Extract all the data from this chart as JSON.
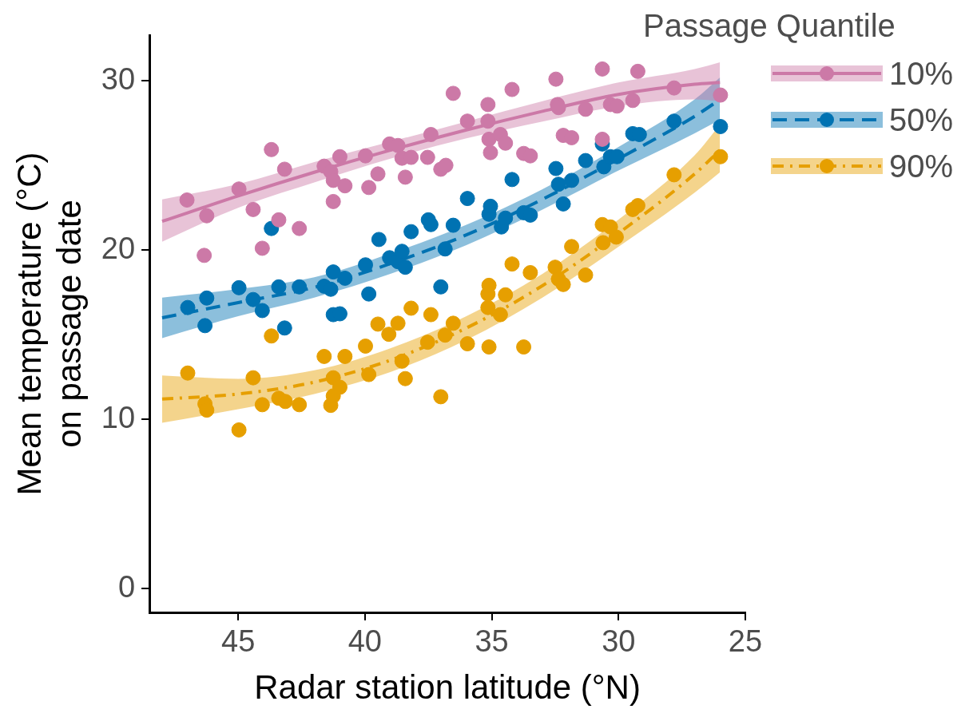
{
  "chart_data": {
    "type": "scatter",
    "xlabel": "Radar station latitude (°N)",
    "ylabel": "Mean temperature (°C)\non passage date",
    "legend_title": "Passage Quantile",
    "legend": "right",
    "grid": false,
    "xlim": [
      48.5,
      25
    ],
    "xticks": [
      45,
      40,
      35,
      30,
      25
    ],
    "ylim": [
      -1.4,
      32.7
    ],
    "yticks": [
      0,
      10,
      20,
      30
    ],
    "series": [
      {
        "name": "10%",
        "marker": "circle",
        "color": "#cc79a7",
        "x": [
          47.02,
          46.24,
          46.34,
          44.97,
          44.41,
          44.05,
          43.69,
          43.4,
          43.17,
          42.59,
          41.61,
          41.35,
          41.25,
          41.25,
          40.99,
          40.79,
          39.98,
          39.85,
          39.49,
          39.03,
          38.7,
          38.54,
          38.41,
          38.18,
          37.53,
          37.4,
          37.01,
          36.81,
          36.52,
          35.96,
          35.15,
          35.15,
          35.11,
          35.05,
          34.66,
          34.46,
          34.2,
          33.74,
          33.48,
          32.47,
          32.41,
          32.37,
          32.18,
          31.85,
          31.3,
          30.64,
          30.64,
          30.32,
          30.06,
          29.44,
          29.24,
          27.81,
          25.98
        ],
        "values": [
          22.96,
          22.03,
          19.69,
          23.61,
          22.4,
          20.11,
          25.94,
          21.79,
          24.78,
          21.28,
          24.96,
          24.64,
          24.12,
          22.87,
          25.52,
          23.8,
          25.57,
          23.7,
          24.5,
          26.27,
          26.18,
          25.43,
          24.31,
          25.48,
          25.48,
          26.83,
          24.78,
          25.01,
          29.26,
          27.62,
          28.6,
          27.62,
          26.55,
          25.76,
          26.83,
          26.32,
          29.49,
          25.71,
          25.57,
          30.1,
          28.6,
          28.42,
          26.78,
          26.64,
          28.32,
          30.7,
          26.55,
          28.6,
          28.51,
          28.84,
          30.56,
          29.58,
          29.16
        ]
      },
      {
        "name": "50%",
        "marker": "circle",
        "color": "#0072b2",
        "x": [
          46.99,
          46.24,
          46.31,
          44.97,
          44.41,
          44.05,
          43.69,
          43.4,
          43.17,
          42.59,
          41.61,
          41.35,
          41.25,
          41.25,
          40.99,
          40.79,
          39.98,
          39.85,
          39.45,
          39.03,
          38.7,
          38.54,
          38.41,
          38.18,
          37.5,
          37.4,
          37.01,
          36.84,
          36.52,
          35.96,
          35.11,
          35.05,
          34.62,
          34.46,
          34.2,
          33.74,
          33.48,
          32.47,
          32.37,
          32.18,
          31.85,
          31.3,
          30.64,
          30.58,
          30.32,
          30.06,
          29.44,
          29.18,
          27.81,
          25.98
        ],
        "values": [
          16.61,
          17.17,
          15.54,
          17.78,
          17.08,
          16.43,
          21.28,
          17.83,
          15.4,
          17.83,
          17.87,
          17.69,
          18.71,
          16.19,
          16.24,
          18.34,
          19.13,
          17.41,
          20.63,
          19.55,
          19.32,
          19.93,
          18.99,
          21.09,
          21.79,
          21.51,
          17.83,
          20.07,
          21.47,
          23.05,
          22.12,
          22.59,
          21.37,
          21.89,
          24.17,
          22.21,
          22.07,
          24.82,
          23.89,
          22.73,
          24.12,
          25.29,
          26.27,
          24.92,
          25.52,
          25.52,
          26.88,
          26.83,
          27.62,
          27.3
        ]
      },
      {
        "name": "90%",
        "marker": "circle",
        "color": "#e69f00",
        "x": [
          46.99,
          46.31,
          46.24,
          44.97,
          44.41,
          44.05,
          43.69,
          43.4,
          43.14,
          42.59,
          41.61,
          41.35,
          41.25,
          41.25,
          40.99,
          40.79,
          39.98,
          39.85,
          39.49,
          39.06,
          38.7,
          38.54,
          38.41,
          38.18,
          37.53,
          37.4,
          37.01,
          36.84,
          36.52,
          35.96,
          35.15,
          35.15,
          35.11,
          35.11,
          34.66,
          34.46,
          34.2,
          33.74,
          33.48,
          32.5,
          32.37,
          32.18,
          31.85,
          31.3,
          30.64,
          30.61,
          30.32,
          30.09,
          29.44,
          29.24,
          27.81,
          25.98
        ],
        "values": [
          12.74,
          10.92,
          10.55,
          9.38,
          12.46,
          10.87,
          14.93,
          11.25,
          11.06,
          10.87,
          13.72,
          10.83,
          12.46,
          11.39,
          11.9,
          13.72,
          14.33,
          12.65,
          15.63,
          15.03,
          15.68,
          13.44,
          12.41,
          16.57,
          14.56,
          16.19,
          11.34,
          14.98,
          15.68,
          14.47,
          16.61,
          17.41,
          17.92,
          14.28,
          16.19,
          17.36,
          19.18,
          14.28,
          18.67,
          18.99,
          18.29,
          17.97,
          20.21,
          18.53,
          21.51,
          20.44,
          21.37,
          20.77,
          22.4,
          22.63,
          24.45,
          25.52
        ]
      },
      {
        "type": "line",
        "marker": "none",
        "color": "#cc79a7",
        "line_style": "solid",
        "x": [
          48,
          45,
          42,
          39,
          36,
          33,
          30,
          27,
          26
        ],
        "values": [
          21.7,
          23.2,
          24.6,
          25.9,
          27.1,
          28.2,
          29.2,
          29.8,
          29.9
        ],
        "lower": [
          20.5,
          22.5,
          24.0,
          25.4,
          26.6,
          27.6,
          28.5,
          28.9,
          28.8
        ],
        "upper": [
          23.0,
          23.9,
          25.2,
          26.4,
          27.6,
          28.8,
          29.9,
          30.7,
          31.1
        ]
      },
      {
        "type": "line",
        "marker": "none",
        "color": "#0072b2",
        "line_style": "dashed",
        "x": [
          48,
          45,
          42,
          39,
          36,
          33,
          30,
          27,
          26
        ],
        "values": [
          16.0,
          16.9,
          17.8,
          19.2,
          20.9,
          23.0,
          25.4,
          27.9,
          28.9
        ],
        "lower": [
          14.8,
          16.1,
          17.2,
          18.6,
          20.3,
          22.4,
          24.7,
          26.9,
          27.7
        ],
        "upper": [
          17.2,
          17.7,
          18.4,
          19.8,
          21.5,
          23.6,
          26.1,
          28.9,
          30.2
        ]
      },
      {
        "type": "line",
        "marker": "none",
        "color": "#e69f00",
        "line_style": "dashdot",
        "x": [
          48,
          45,
          42,
          39,
          36,
          33,
          30,
          27,
          26
        ],
        "values": [
          11.2,
          11.5,
          12.2,
          13.5,
          15.4,
          17.9,
          21.0,
          24.5,
          25.9
        ],
        "lower": [
          9.8,
          10.6,
          11.5,
          12.8,
          14.7,
          17.2,
          20.2,
          23.4,
          24.6
        ],
        "upper": [
          12.6,
          12.4,
          12.9,
          14.2,
          16.1,
          18.6,
          21.8,
          25.6,
          27.4
        ]
      }
    ]
  }
}
